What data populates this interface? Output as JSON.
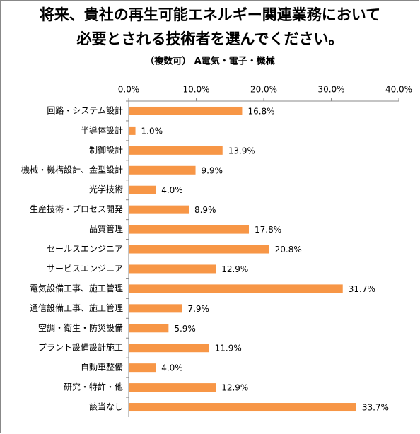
{
  "chart_data": {
    "type": "bar",
    "orientation": "horizontal",
    "title": [
      "将来、貴社の再生可能エネルギー関連業務において",
      "必要とされる技術者を選んでください。"
    ],
    "subtitle": "（複数可） A電気・電子・機械",
    "categories": [
      "回路・システム設計",
      "半導体設計",
      "制御設計",
      "機械・機構設計、金型設計",
      "光学技術",
      "生産技術・プロセス開発",
      "品質管理",
      "セールスエンジニア",
      "サービスエンジニア",
      "電気設備工事、施工管理",
      "通信設備工事、施工管理",
      "空調・衛生・防災設備",
      "プラント設備設計施工",
      "自動車整備",
      "研究・特許・他",
      "該当なし"
    ],
    "values": [
      16.8,
      1.0,
      13.9,
      9.9,
      4.0,
      8.9,
      17.8,
      20.8,
      12.9,
      31.7,
      7.9,
      5.9,
      11.9,
      4.0,
      12.9,
      33.7
    ],
    "value_labels": [
      "16.8%",
      "1.0%",
      "13.9%",
      "9.9%",
      "4.0%",
      "8.9%",
      "17.8%",
      "20.8%",
      "12.9%",
      "31.7%",
      "7.9%",
      "5.9%",
      "11.9%",
      "4.0%",
      "12.9%",
      "33.7%"
    ],
    "color": "#f79646",
    "xlim": [
      0,
      40
    ],
    "xticks": [
      {
        "value": 0,
        "label": "0.0%"
      },
      {
        "value": 10,
        "label": "10.0%"
      },
      {
        "value": 20,
        "label": "20.0%"
      },
      {
        "value": 30,
        "label": "30.0%"
      },
      {
        "value": 40,
        "label": "40.0%"
      }
    ],
    "grid": false
  }
}
